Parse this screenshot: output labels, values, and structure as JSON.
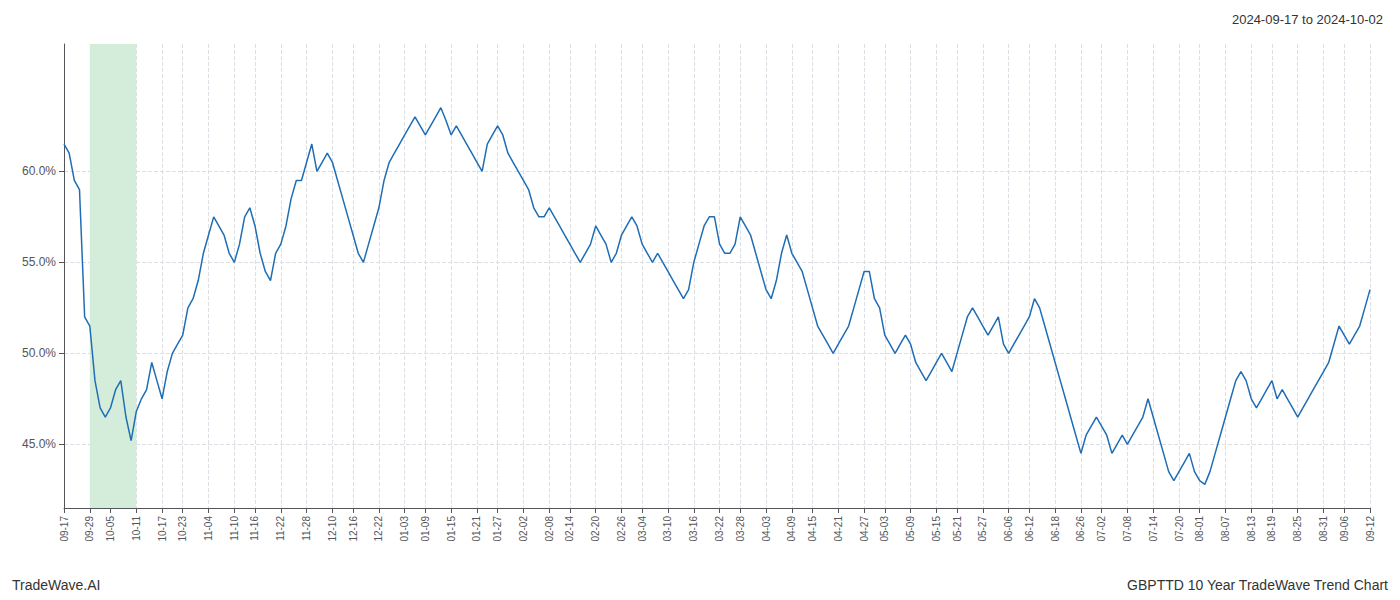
{
  "chart_data": {
    "type": "line",
    "title": "2024-09-17 to 2024-10-02",
    "annotations": [
      "TradeWave.AI",
      "GBPTTD 10 Year TradeWave Trend Chart"
    ],
    "color": "#1f6eb5",
    "grid": true,
    "highlight": {
      "start": "09-29",
      "end": "10-11",
      "color": "#d4edda"
    },
    "ylim": [
      41.5,
      67.0
    ],
    "yticks": [
      {
        "value": 45.0,
        "label": "45.0%"
      },
      {
        "value": 50.0,
        "label": "50.0%"
      },
      {
        "value": 55.0,
        "label": "55.0%"
      },
      {
        "value": 60.0,
        "label": "60.0%"
      }
    ],
    "categories": [
      "09-17",
      null,
      null,
      null,
      null,
      "09-29",
      null,
      null,
      null,
      "10-05",
      null,
      null,
      null,
      null,
      "10-11",
      null,
      null,
      null,
      null,
      "10-17",
      null,
      null,
      null,
      "10-23",
      null,
      null,
      null,
      null,
      "11-04",
      null,
      null,
      null,
      null,
      "11-10",
      null,
      null,
      null,
      "11-16",
      null,
      null,
      null,
      null,
      "11-22",
      null,
      null,
      null,
      null,
      "11-28",
      null,
      null,
      null,
      null,
      "12-10",
      null,
      null,
      null,
      "12-16",
      null,
      null,
      null,
      null,
      "12-22",
      null,
      null,
      null,
      null,
      "01-03",
      null,
      null,
      null,
      "01-09",
      null,
      null,
      null,
      null,
      "01-15",
      null,
      null,
      null,
      null,
      "01-21",
      null,
      null,
      null,
      "01-27",
      null,
      null,
      null,
      null,
      "02-02",
      null,
      null,
      null,
      null,
      "02-08",
      null,
      null,
      null,
      "02-14",
      null,
      null,
      null,
      null,
      "02-20",
      null,
      null,
      null,
      null,
      "02-26",
      null,
      null,
      null,
      "03-04",
      null,
      null,
      null,
      null,
      "03-10",
      null,
      null,
      null,
      null,
      "03-16",
      null,
      null,
      null,
      null,
      "03-22",
      null,
      null,
      null,
      "03-28",
      null,
      null,
      null,
      null,
      "04-03",
      null,
      null,
      null,
      null,
      "04-09",
      null,
      null,
      null,
      "04-15",
      null,
      null,
      null,
      null,
      "04-21",
      null,
      null,
      null,
      null,
      "04-27",
      null,
      null,
      null,
      "05-03",
      null,
      null,
      null,
      null,
      "05-09",
      null,
      null,
      null,
      null,
      "05-15",
      null,
      null,
      null,
      "05-21",
      null,
      null,
      null,
      null,
      "05-27",
      null,
      null,
      null,
      null,
      "06-06",
      null,
      null,
      null,
      "06-12",
      null,
      null,
      null,
      null,
      "06-18",
      null,
      null,
      null,
      null,
      "06-26",
      null,
      null,
      null,
      "07-02",
      null,
      null,
      null,
      null,
      "07-08",
      null,
      null,
      null,
      null,
      "07-14",
      null,
      null,
      null,
      null,
      "07-20",
      null,
      null,
      null,
      "08-01",
      null,
      null,
      null,
      null,
      "08-07",
      null,
      null,
      null,
      null,
      "08-13",
      null,
      null,
      null,
      "08-19",
      null,
      null,
      null,
      null,
      "08-25",
      null,
      null,
      null,
      null,
      "08-31",
      null,
      null,
      null,
      "09-06",
      null,
      null,
      null,
      null,
      "09-12"
    ],
    "values": [
      61.5,
      61.0,
      59.5,
      59.0,
      52.0,
      51.5,
      48.5,
      47.0,
      46.5,
      47.0,
      48.0,
      48.5,
      46.5,
      45.2,
      46.8,
      47.5,
      48.0,
      49.5,
      48.5,
      47.5,
      49.0,
      50.0,
      50.5,
      51.0,
      52.5,
      53.0,
      54.0,
      55.5,
      56.5,
      57.5,
      57.0,
      56.5,
      55.5,
      55.0,
      56.0,
      57.5,
      58.0,
      57.0,
      55.5,
      54.5,
      54.0,
      55.5,
      56.0,
      57.0,
      58.5,
      59.5,
      59.5,
      60.5,
      61.5,
      60.0,
      60.5,
      61.0,
      60.5,
      59.5,
      58.5,
      57.5,
      56.5,
      55.5,
      55.0,
      56.0,
      57.0,
      58.0,
      59.5,
      60.5,
      61.0,
      61.5,
      62.0,
      62.5,
      63.0,
      62.5,
      62.0,
      62.5,
      63.0,
      63.5,
      62.8,
      62.0,
      62.5,
      62.0,
      61.5,
      61.0,
      60.5,
      60.0,
      61.5,
      62.0,
      62.5,
      62.0,
      61.0,
      60.5,
      60.0,
      59.5,
      59.0,
      58.0,
      57.5,
      57.5,
      58.0,
      57.5,
      57.0,
      56.5,
      56.0,
      55.5,
      55.0,
      55.5,
      56.0,
      57.0,
      56.5,
      56.0,
      55.0,
      55.5,
      56.5,
      57.0,
      57.5,
      57.0,
      56.0,
      55.5,
      55.0,
      55.5,
      55.0,
      54.5,
      54.0,
      53.5,
      53.0,
      53.5,
      55.0,
      56.0,
      57.0,
      57.5,
      57.5,
      56.0,
      55.5,
      55.5,
      56.0,
      57.5,
      57.0,
      56.5,
      55.5,
      54.5,
      53.5,
      53.0,
      54.0,
      55.5,
      56.5,
      55.5,
      55.0,
      54.5,
      53.5,
      52.5,
      51.5,
      51.0,
      50.5,
      50.0,
      50.5,
      51.0,
      51.5,
      52.5,
      53.5,
      54.5,
      54.5,
      53.0,
      52.5,
      51.0,
      50.5,
      50.0,
      50.5,
      51.0,
      50.5,
      49.5,
      49.0,
      48.5,
      49.0,
      49.5,
      50.0,
      49.5,
      49.0,
      50.0,
      51.0,
      52.0,
      52.5,
      52.0,
      51.5,
      51.0,
      51.5,
      52.0,
      50.5,
      50.0,
      50.5,
      51.0,
      51.5,
      52.0,
      53.0,
      52.5,
      51.5,
      50.5,
      49.5,
      48.5,
      47.5,
      46.5,
      45.5,
      44.5,
      45.5,
      46.0,
      46.5,
      46.0,
      45.5,
      44.5,
      45.0,
      45.5,
      45.0,
      45.5,
      46.0,
      46.5,
      47.5,
      46.5,
      45.5,
      44.5,
      43.5,
      43.0,
      43.5,
      44.0,
      44.5,
      43.5,
      43.0,
      42.8,
      43.5,
      44.5,
      45.5,
      46.5,
      47.5,
      48.5,
      49.0,
      48.5,
      47.5,
      47.0,
      47.5,
      48.0,
      48.5,
      47.5,
      48.0,
      47.5,
      47.0,
      46.5,
      47.0,
      47.5,
      48.0,
      48.5,
      49.0,
      49.5,
      50.5,
      51.5,
      51.0,
      50.5,
      51.0,
      51.5,
      52.5,
      53.5
    ]
  }
}
